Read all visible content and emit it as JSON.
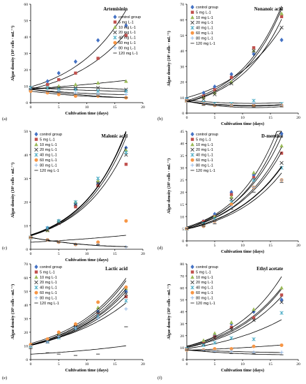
{
  "chart_data": [
    {
      "type": "scatter",
      "panel_label": "(a)",
      "title": "Artemisinin",
      "xlabel": "Cultivation time (days)",
      "ylabel": "Algae density (10⁵ cells · mL⁻¹)",
      "xlim": [
        0,
        20
      ],
      "ylim": [
        0,
        60
      ],
      "xticks": [
        0,
        5,
        10,
        15,
        20
      ],
      "yticks": [
        0,
        10,
        20,
        30,
        40,
        50,
        60
      ],
      "legend_position": "top-right",
      "x": [
        0,
        3,
        5,
        8,
        12,
        17
      ],
      "series": [
        {
          "name": "control group",
          "values": [
            8,
            13,
            18,
            25,
            38,
            47
          ]
        },
        {
          "name": "5 mg L-1",
          "values": [
            8,
            11,
            14,
            18,
            27,
            41
          ]
        },
        {
          "name": "10 mg L-1",
          "values": [
            8,
            9,
            10,
            11,
            12,
            13
          ]
        },
        {
          "name": "20 mg L-1",
          "values": [
            8,
            9,
            9,
            9,
            9,
            8
          ]
        },
        {
          "name": "40 mg L-1",
          "values": [
            9,
            9,
            8,
            8,
            7,
            7
          ]
        },
        {
          "name": "60 mg L-1",
          "values": [
            7,
            6,
            5,
            4,
            4,
            3
          ]
        },
        {
          "name": "80 mg L-1",
          "values": [
            8,
            7,
            7,
            6,
            5,
            5
          ]
        },
        {
          "name": "120 mg L-1",
          "values": [
            8,
            7,
            6,
            5,
            4,
            3
          ]
        }
      ]
    },
    {
      "type": "scatter",
      "panel_label": "(b)",
      "title": "Nonanoic acid",
      "xlabel": "Cultivation time (days)",
      "ylabel": "Algae density (10⁵ cells · mL⁻¹)",
      "xlim": [
        0,
        20
      ],
      "ylim": [
        0,
        70
      ],
      "xticks": [
        0,
        5,
        10,
        15,
        20
      ],
      "yticks": [
        0,
        10,
        20,
        30,
        40,
        50,
        60,
        70
      ],
      "legend_position": "top-left",
      "x": [
        0,
        3,
        5,
        8,
        12,
        17
      ],
      "series": [
        {
          "name": "control group",
          "values": [
            9,
            13,
            17,
            25,
            38,
            47
          ]
        },
        {
          "name": "5 mg L-1",
          "values": [
            8,
            11,
            15,
            23,
            42,
            62
          ]
        },
        {
          "name": "10 mg L-1",
          "values": [
            8,
            10,
            13,
            20,
            40,
            64
          ]
        },
        {
          "name": "20 mg L-1",
          "values": [
            8,
            9,
            12,
            19,
            40,
            55
          ]
        },
        {
          "name": "40 mg L-1",
          "values": [
            9,
            7,
            6,
            6,
            8,
            6
          ]
        },
        {
          "name": "60 mg L-1",
          "values": [
            8,
            6,
            5,
            5,
            5,
            5
          ]
        },
        {
          "name": "80 mg L-1",
          "values": [
            8,
            6,
            5,
            5,
            6,
            5
          ]
        },
        {
          "name": "120 mg L-1",
          "values": [
            8,
            5,
            5,
            4,
            4,
            4
          ]
        }
      ]
    },
    {
      "type": "scatter",
      "panel_label": "(c)",
      "title": "Malonic acid",
      "xlabel": "Cultivation time (days)",
      "ylabel": "Algae density (10⁵ cells · mL⁻¹)",
      "xlim": [
        0,
        20
      ],
      "ylim": [
        0,
        50
      ],
      "xticks": [
        0,
        5,
        10,
        15,
        20
      ],
      "yticks": [
        0,
        10,
        20,
        30,
        40,
        50
      ],
      "legend_position": "top-left",
      "x": [
        0,
        3,
        5,
        8,
        12,
        17
      ],
      "series": [
        {
          "name": "control group",
          "values": [
            5,
            9,
            12,
            19,
            28,
            43
          ]
        },
        {
          "name": "5 mg L-1",
          "values": [
            5,
            8,
            11,
            18,
            27,
            36
          ]
        },
        {
          "name": "10 mg L-1",
          "values": [
            5,
            8,
            12,
            20,
            29,
            42
          ]
        },
        {
          "name": "20 mg L-1",
          "values": [
            5,
            8,
            11,
            19,
            28,
            40
          ]
        },
        {
          "name": "40 mg L-1",
          "values": [
            5,
            9,
            12,
            20,
            30,
            41
          ]
        },
        {
          "name": "60 mg L-1",
          "values": [
            5,
            4,
            3,
            2,
            3,
            12
          ]
        },
        {
          "name": "80 mg L-1",
          "values": [
            5,
            4,
            3,
            2,
            2,
            1
          ]
        },
        {
          "name": "120 mg L-1",
          "values": [
            5,
            4,
            3,
            2,
            2,
            1
          ]
        }
      ]
    },
    {
      "type": "scatter",
      "panel_label": "(d)",
      "title": "D-menthol",
      "xlabel": "Cultivation time (days)",
      "ylabel": "Algae density (10⁵ cells · mL⁻¹)",
      "xlim": [
        0,
        20
      ],
      "ylim": [
        0,
        45
      ],
      "xticks": [
        0,
        5,
        10,
        15,
        20
      ],
      "yticks": [
        0,
        5,
        10,
        15,
        20,
        25,
        30,
        35,
        40,
        45
      ],
      "legend_position": "top-left",
      "x": [
        0,
        3,
        5,
        8,
        12,
        17
      ],
      "series": [
        {
          "name": "control group",
          "values": [
            5,
            8,
            11,
            20,
            27,
            44
          ]
        },
        {
          "name": "5 mg L-1",
          "values": [
            5,
            8,
            10,
            19,
            26,
            36
          ]
        },
        {
          "name": "10 mg L-1",
          "values": [
            5,
            7,
            10,
            18,
            28,
            39
          ]
        },
        {
          "name": "20 mg L-1",
          "values": [
            5,
            7,
            9,
            17,
            25,
            32
          ]
        },
        {
          "name": "40 mg L-1",
          "values": [
            5,
            7,
            9,
            16,
            25,
            30
          ]
        },
        {
          "name": "60 mg L-1",
          "values": [
            5,
            6,
            8,
            15,
            22,
            25
          ]
        },
        {
          "name": "80 mg L-1",
          "values": [
            5,
            6,
            8,
            14,
            22,
            25
          ]
        },
        {
          "name": "120 mg L-1",
          "values": [
            5,
            6,
            7,
            13,
            20,
            24
          ]
        }
      ]
    },
    {
      "type": "scatter",
      "panel_label": "(e)",
      "title": "Lactic acid",
      "xlabel": "Cultivation time (days)",
      "ylabel": "Algae density (10⁵ cells · mL⁻¹)",
      "xlim": [
        0,
        20
      ],
      "ylim": [
        0,
        70
      ],
      "xticks": [
        0,
        5,
        10,
        15,
        20
      ],
      "yticks": [
        0,
        10,
        20,
        30,
        40,
        50,
        60,
        70
      ],
      "legend_position": "top-left",
      "x": [
        0,
        3,
        5,
        8,
        12,
        17
      ],
      "series": [
        {
          "name": "control group",
          "values": [
            10,
            14,
            18,
            25,
            35,
            50
          ]
        },
        {
          "name": "5 mg L-1",
          "values": [
            10,
            13,
            17,
            24,
            33,
            46
          ]
        },
        {
          "name": "10 mg L-1",
          "values": [
            10,
            14,
            19,
            26,
            38,
            52
          ]
        },
        {
          "name": "20 mg L-1",
          "values": [
            10,
            13,
            17,
            24,
            34,
            48
          ]
        },
        {
          "name": "40 mg L-1",
          "values": [
            10,
            13,
            16,
            23,
            32,
            43
          ]
        },
        {
          "name": "60 mg L-1",
          "values": [
            11,
            15,
            20,
            26,
            42,
            53
          ]
        },
        {
          "name": "80 mg L-1",
          "values": [
            10,
            13,
            17,
            23,
            30,
            37
          ]
        },
        {
          "name": "120 mg L-1",
          "values": [
            8,
            5,
            4,
            3,
            4,
            24
          ]
        }
      ]
    },
    {
      "type": "scatter",
      "panel_label": "(f)",
      "title": "Ethyl acetate",
      "xlabel": "Cultivation time (days)",
      "ylabel": "Algae density (10⁵ cells · mL⁻¹)",
      "xlim": [
        0,
        20
      ],
      "ylim": [
        0,
        80
      ],
      "xticks": [
        0,
        5,
        10,
        15,
        20
      ],
      "yticks": [
        0,
        10,
        20,
        30,
        40,
        50,
        60,
        70,
        80
      ],
      "legend_position": "top-left",
      "x": [
        0,
        3,
        5,
        8,
        12,
        17
      ],
      "series": [
        {
          "name": "control group",
          "values": [
            9,
            15,
            20,
            30,
            40,
            50
          ]
        },
        {
          "name": "5 mg L-1",
          "values": [
            9,
            14,
            19,
            27,
            35,
            54
          ]
        },
        {
          "name": "10 mg L-1",
          "values": [
            9,
            16,
            22,
            31,
            42,
            60
          ]
        },
        {
          "name": "20 mg L-1",
          "values": [
            9,
            13,
            18,
            25,
            33,
            48
          ]
        },
        {
          "name": "40 mg L-1",
          "values": [
            9,
            12,
            14,
            18,
            17,
            39
          ]
        },
        {
          "name": "60 mg L-1",
          "values": [
            8,
            8,
            9,
            9,
            11,
            12
          ]
        },
        {
          "name": "80 mg L-1",
          "values": [
            8,
            8,
            7,
            7,
            6,
            6
          ]
        },
        {
          "name": "120 mg L-1",
          "values": [
            8,
            7,
            6,
            5,
            5,
            4
          ]
        }
      ]
    }
  ],
  "colors": {
    "control group": "#4472c4",
    "5 mg L-1": "#c0504d",
    "10 mg L-1": "#9bbb59",
    "20 mg L-1": "#404040",
    "40 mg L-1": "#4bacc6",
    "60 mg L-1": "#f79646",
    "80 mg L-1": "#8eb4e3",
    "120 mg L-1": "#404040",
    "axis": "#000000",
    "trendline": "#000000"
  },
  "markers": {
    "control group": "diamond",
    "5 mg L-1": "square",
    "10 mg L-1": "triangle",
    "20 mg L-1": "x",
    "40 mg L-1": "star",
    "60 mg L-1": "circle",
    "80 mg L-1": "plus",
    "120 mg L-1": "dash"
  }
}
